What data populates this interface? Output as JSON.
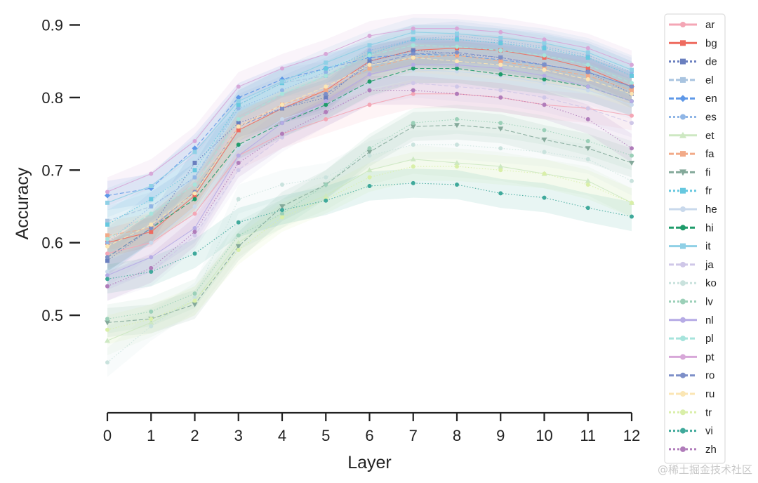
{
  "chart_data": {
    "type": "line",
    "xlabel": "Layer",
    "ylabel": "Accuracy",
    "x": [
      0,
      1,
      2,
      3,
      4,
      5,
      6,
      7,
      8,
      9,
      10,
      11,
      12
    ],
    "x_ticks": [
      "0",
      "1",
      "2",
      "3",
      "4",
      "5",
      "6",
      "7",
      "8",
      "9",
      "10",
      "11",
      "12"
    ],
    "y_ticks": [
      "0.5",
      "0.6",
      "0.7",
      "0.8",
      "0.9"
    ],
    "ylim": [
      0.385,
      0.915
    ],
    "xlim": [
      0,
      12
    ],
    "grid": false,
    "legend_position": "right",
    "band_halfwidth": 0.02,
    "series": [
      {
        "name": "ar",
        "color": "#f4a6b5",
        "style": "solid",
        "marker": "circle",
        "values": [
          0.585,
          0.6,
          0.64,
          0.72,
          0.75,
          0.77,
          0.79,
          0.805,
          0.805,
          0.8,
          0.79,
          0.785,
          0.775
        ]
      },
      {
        "name": "bg",
        "color": "#ee6b5f",
        "style": "solid",
        "marker": "square",
        "values": [
          0.6,
          0.615,
          0.665,
          0.755,
          0.785,
          0.81,
          0.85,
          0.865,
          0.868,
          0.865,
          0.855,
          0.84,
          0.815
        ]
      },
      {
        "name": "de",
        "color": "#6a7fbf",
        "style": "dotted",
        "marker": "square",
        "values": [
          0.575,
          0.62,
          0.71,
          0.765,
          0.785,
          0.8,
          0.85,
          0.865,
          0.86,
          0.855,
          0.845,
          0.835,
          0.805
        ]
      },
      {
        "name": "el",
        "color": "#a9c4e0",
        "style": "dashed",
        "marker": "square",
        "values": [
          0.63,
          0.65,
          0.69,
          0.79,
          0.82,
          0.83,
          0.86,
          0.88,
          0.88,
          0.875,
          0.865,
          0.855,
          0.83
        ]
      },
      {
        "name": "en",
        "color": "#5e98e8",
        "style": "dashed",
        "marker": "diamond",
        "values": [
          0.665,
          0.675,
          0.73,
          0.8,
          0.825,
          0.84,
          0.855,
          0.86,
          0.858,
          0.852,
          0.845,
          0.835,
          0.815
        ]
      },
      {
        "name": "es",
        "color": "#90b6e6",
        "style": "dotted",
        "marker": "circle",
        "values": [
          0.6,
          0.65,
          0.69,
          0.785,
          0.81,
          0.835,
          0.865,
          0.88,
          0.885,
          0.878,
          0.87,
          0.858,
          0.835
        ]
      },
      {
        "name": "et",
        "color": "#cde8c2",
        "style": "solid",
        "marker": "triangle",
        "values": [
          0.465,
          0.49,
          0.52,
          0.6,
          0.64,
          0.665,
          0.7,
          0.715,
          0.71,
          0.705,
          0.695,
          0.685,
          0.655
        ]
      },
      {
        "name": "fa",
        "color": "#f2aa88",
        "style": "dashed",
        "marker": "square",
        "values": [
          0.61,
          0.62,
          0.67,
          0.76,
          0.79,
          0.81,
          0.84,
          0.855,
          0.858,
          0.85,
          0.84,
          0.83,
          0.81
        ]
      },
      {
        "name": "fi",
        "color": "#84a99a",
        "style": "dashed",
        "marker": "triangle-down",
        "values": [
          0.49,
          0.495,
          0.515,
          0.595,
          0.65,
          0.68,
          0.725,
          0.76,
          0.762,
          0.757,
          0.742,
          0.73,
          0.71
        ]
      },
      {
        "name": "fr",
        "color": "#66c8df",
        "style": "dotted",
        "marker": "square",
        "values": [
          0.625,
          0.66,
          0.7,
          0.79,
          0.82,
          0.84,
          0.86,
          0.88,
          0.88,
          0.875,
          0.868,
          0.855,
          0.83
        ]
      },
      {
        "name": "he",
        "color": "#c9d9ec",
        "style": "solid",
        "marker": "circle",
        "values": [
          0.56,
          0.6,
          0.65,
          0.73,
          0.77,
          0.79,
          0.82,
          0.838,
          0.836,
          0.83,
          0.82,
          0.81,
          0.79
        ]
      },
      {
        "name": "hi",
        "color": "#1f9b6a",
        "style": "dashed",
        "marker": "circle",
        "values": [
          0.58,
          0.62,
          0.66,
          0.735,
          0.765,
          0.79,
          0.822,
          0.84,
          0.84,
          0.832,
          0.825,
          0.815,
          0.795
        ]
      },
      {
        "name": "it",
        "color": "#8fd0e6",
        "style": "solid",
        "marker": "square",
        "values": [
          0.655,
          0.678,
          0.725,
          0.795,
          0.822,
          0.848,
          0.872,
          0.89,
          0.888,
          0.882,
          0.875,
          0.862,
          0.838
        ]
      },
      {
        "name": "ja",
        "color": "#cfc7e8",
        "style": "dashed",
        "marker": "circle",
        "values": [
          0.54,
          0.56,
          0.61,
          0.7,
          0.745,
          0.78,
          0.81,
          0.82,
          0.815,
          0.81,
          0.8,
          0.785,
          0.765
        ]
      },
      {
        "name": "ko",
        "color": "#c9e2dd",
        "style": "dotted",
        "marker": "circle",
        "values": [
          0.435,
          0.485,
          0.525,
          0.66,
          0.68,
          0.69,
          0.72,
          0.735,
          0.735,
          0.73,
          0.725,
          0.715,
          0.685
        ]
      },
      {
        "name": "lv",
        "color": "#9bd0b8",
        "style": "dotted",
        "marker": "circle",
        "values": [
          0.495,
          0.505,
          0.53,
          0.61,
          0.64,
          0.68,
          0.73,
          0.765,
          0.77,
          0.765,
          0.755,
          0.74,
          0.72
        ]
      },
      {
        "name": "nl",
        "color": "#b6abe5",
        "style": "solid",
        "marker": "circle",
        "values": [
          0.555,
          0.58,
          0.62,
          0.72,
          0.765,
          0.795,
          0.832,
          0.845,
          0.845,
          0.84,
          0.83,
          0.815,
          0.795
        ]
      },
      {
        "name": "pl",
        "color": "#a6e4dc",
        "style": "dashed",
        "marker": "circle",
        "values": [
          0.605,
          0.64,
          0.68,
          0.77,
          0.805,
          0.83,
          0.858,
          0.872,
          0.87,
          0.865,
          0.858,
          0.845,
          0.82
        ]
      },
      {
        "name": "pt",
        "color": "#d7a7d8",
        "style": "solid",
        "marker": "circle",
        "values": [
          0.67,
          0.695,
          0.74,
          0.815,
          0.84,
          0.86,
          0.885,
          0.895,
          0.895,
          0.89,
          0.88,
          0.868,
          0.845
        ]
      },
      {
        "name": "ro",
        "color": "#7d8fc8",
        "style": "dashed",
        "marker": "circle",
        "values": [
          0.58,
          0.62,
          0.67,
          0.76,
          0.785,
          0.805,
          0.845,
          0.86,
          0.862,
          0.855,
          0.845,
          0.835,
          0.815
        ]
      },
      {
        "name": "ru",
        "color": "#fbe6b4",
        "style": "dashed",
        "marker": "circle",
        "values": [
          0.595,
          0.625,
          0.668,
          0.76,
          0.79,
          0.815,
          0.845,
          0.855,
          0.85,
          0.845,
          0.838,
          0.825,
          0.805
        ]
      },
      {
        "name": "tr",
        "color": "#d9efa8",
        "style": "dotted",
        "marker": "circle",
        "values": [
          0.48,
          0.495,
          0.52,
          0.59,
          0.635,
          0.66,
          0.69,
          0.705,
          0.705,
          0.7,
          0.695,
          0.68,
          0.655
        ]
      },
      {
        "name": "vi",
        "color": "#3fa99b",
        "style": "dotted",
        "marker": "circle",
        "values": [
          0.55,
          0.56,
          0.585,
          0.628,
          0.645,
          0.658,
          0.678,
          0.682,
          0.68,
          0.668,
          0.662,
          0.648,
          0.636
        ]
      },
      {
        "name": "zh",
        "color": "#b07cba",
        "style": "dotted",
        "marker": "circle",
        "values": [
          0.54,
          0.565,
          0.615,
          0.71,
          0.75,
          0.78,
          0.81,
          0.81,
          0.805,
          0.8,
          0.79,
          0.77,
          0.73
        ]
      }
    ]
  },
  "watermark": "@稀土掘金技术社区"
}
